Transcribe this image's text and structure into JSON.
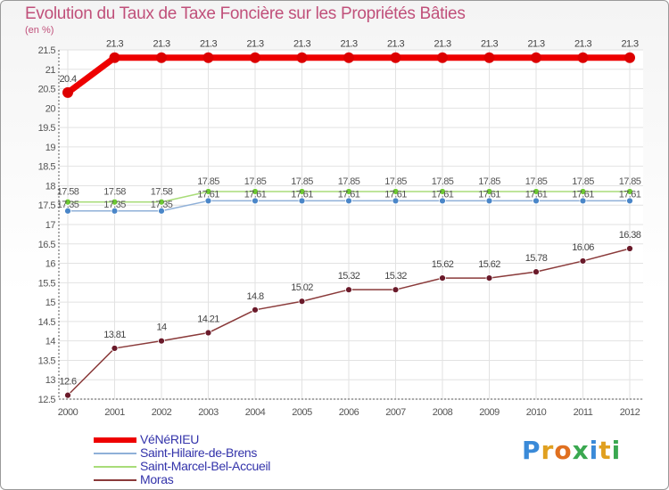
{
  "chart_data": {
    "type": "line",
    "title": "Evolution du Taux de Taxe Foncière sur les Propriétés Bâties",
    "ylabel": "(en %)",
    "categories": [
      "2000",
      "2001",
      "2002",
      "2003",
      "2004",
      "2005",
      "2006",
      "2007",
      "2008",
      "2009",
      "2010",
      "2011",
      "2012"
    ],
    "ylim": [
      12.5,
      21.5
    ],
    "yticks": [
      "12.5",
      "13",
      "13.5",
      "14",
      "14.5",
      "15",
      "15.5",
      "16",
      "16.5",
      "17",
      "17.5",
      "18",
      "18.5",
      "19",
      "19.5",
      "20",
      "20.5",
      "21",
      "21.5"
    ],
    "series": [
      {
        "name": "VéNéRIEU",
        "color": "#ee0000",
        "marker": "#dd0000",
        "values": [
          20.4,
          21.3,
          21.3,
          21.3,
          21.3,
          21.3,
          21.3,
          21.3,
          21.3,
          21.3,
          21.3,
          21.3,
          21.3
        ],
        "labels": [
          "20.4",
          "21.3",
          "21.3",
          "21.3",
          "21.3",
          "21.3",
          "21.3",
          "21.3",
          "21.3",
          "21.3",
          "21.3",
          "21.3",
          "21.3"
        ]
      },
      {
        "name": "Saint-Hilaire-de-Brens",
        "color": "#8fb0d8",
        "marker": "#4a86c8",
        "values": [
          17.35,
          17.35,
          17.35,
          17.61,
          17.61,
          17.61,
          17.61,
          17.61,
          17.61,
          17.61,
          17.61,
          17.61,
          17.61
        ],
        "labels": [
          "17.35",
          "17.35",
          "17.35",
          "17.61",
          "17.61",
          "17.61",
          "17.61",
          "17.61",
          "17.61",
          "17.61",
          "17.61",
          "17.61",
          "17.61"
        ]
      },
      {
        "name": "Saint-Marcel-Bel-Accueil",
        "color": "#a8dc78",
        "marker": "#6cc832",
        "values": [
          17.58,
          17.58,
          17.58,
          17.85,
          17.85,
          17.85,
          17.85,
          17.85,
          17.85,
          17.85,
          17.85,
          17.85,
          17.85
        ],
        "labels": [
          "17.58",
          "17.58",
          "17.58",
          "17.85",
          "17.85",
          "17.85",
          "17.85",
          "17.85",
          "17.85",
          "17.85",
          "17.85",
          "17.85",
          "17.85"
        ]
      },
      {
        "name": "Moras",
        "color": "#8a3a3a",
        "marker": "#6a1a2a",
        "values": [
          12.6,
          13.81,
          14,
          14.21,
          14.8,
          15.02,
          15.32,
          15.32,
          15.62,
          15.62,
          15.78,
          16.06,
          16.38
        ],
        "labels": [
          "12.6",
          "13.81",
          "14",
          "14.21",
          "14.8",
          "15.02",
          "15.32",
          "15.32",
          "15.62",
          "15.62",
          "15.78",
          "16.06",
          "16.38"
        ]
      }
    ]
  },
  "legend": {
    "items": [
      "VéNéRIEU",
      "Saint-Hilaire-de-Brens",
      "Saint-Marcel-Bel-Accueil",
      "Moras"
    ]
  },
  "logo": {
    "letters": [
      "P",
      "r",
      "o",
      "x",
      "i",
      "t",
      "i"
    ],
    "colors": [
      "#3a8ad8",
      "#e0a020",
      "#e07020",
      "#3aa850",
      "#3a8ad8",
      "#e0a020",
      "#3aa850"
    ]
  }
}
